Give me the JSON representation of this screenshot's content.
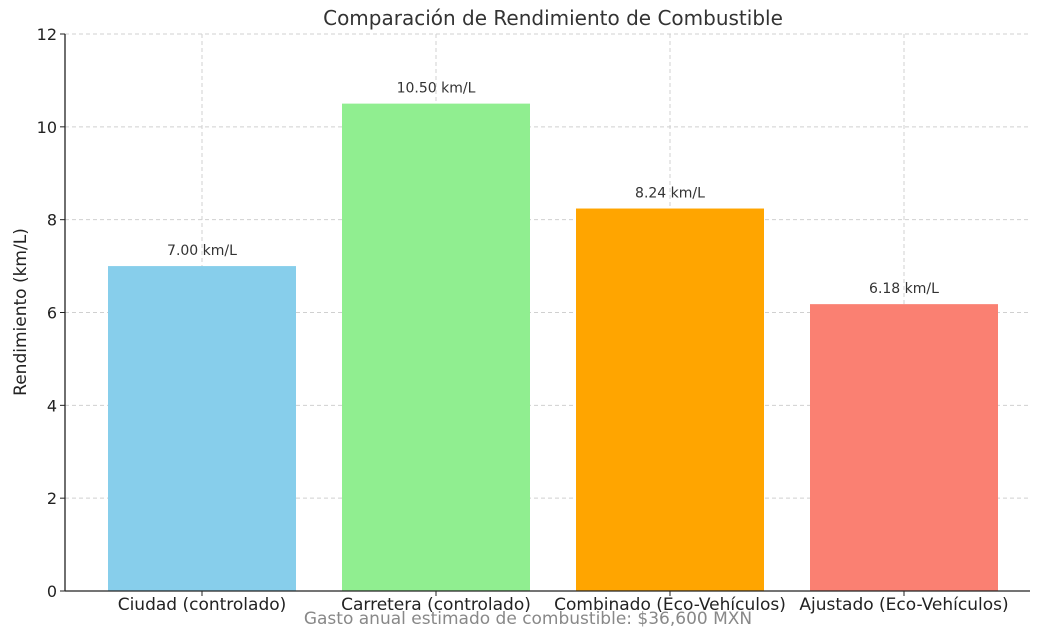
{
  "chart_data": {
    "type": "bar",
    "title": "Comparación de Rendimiento de Combustible",
    "xlabel": "",
    "ylabel": "Rendimiento (km/L)",
    "ylim": [
      0,
      12
    ],
    "yticks": [
      0,
      2,
      4,
      6,
      8,
      10,
      12
    ],
    "grid": true,
    "categories": [
      "Ciudad (controlado)",
      "Carretera (controlado)",
      "Combinado (Eco-Vehículos)",
      "Ajustado (Eco-Vehículos)"
    ],
    "values": [
      7.0,
      10.5,
      8.24,
      6.18
    ],
    "data_labels": [
      "7.00 km/L",
      "10.50 km/L",
      "8.24 km/L",
      "6.18 km/L"
    ],
    "colors": [
      "#87ceeb",
      "#90ee90",
      "#ffa500",
      "#fa8072"
    ],
    "annotation": "Gasto anual estimado de combustible: $36,600 MXN"
  }
}
